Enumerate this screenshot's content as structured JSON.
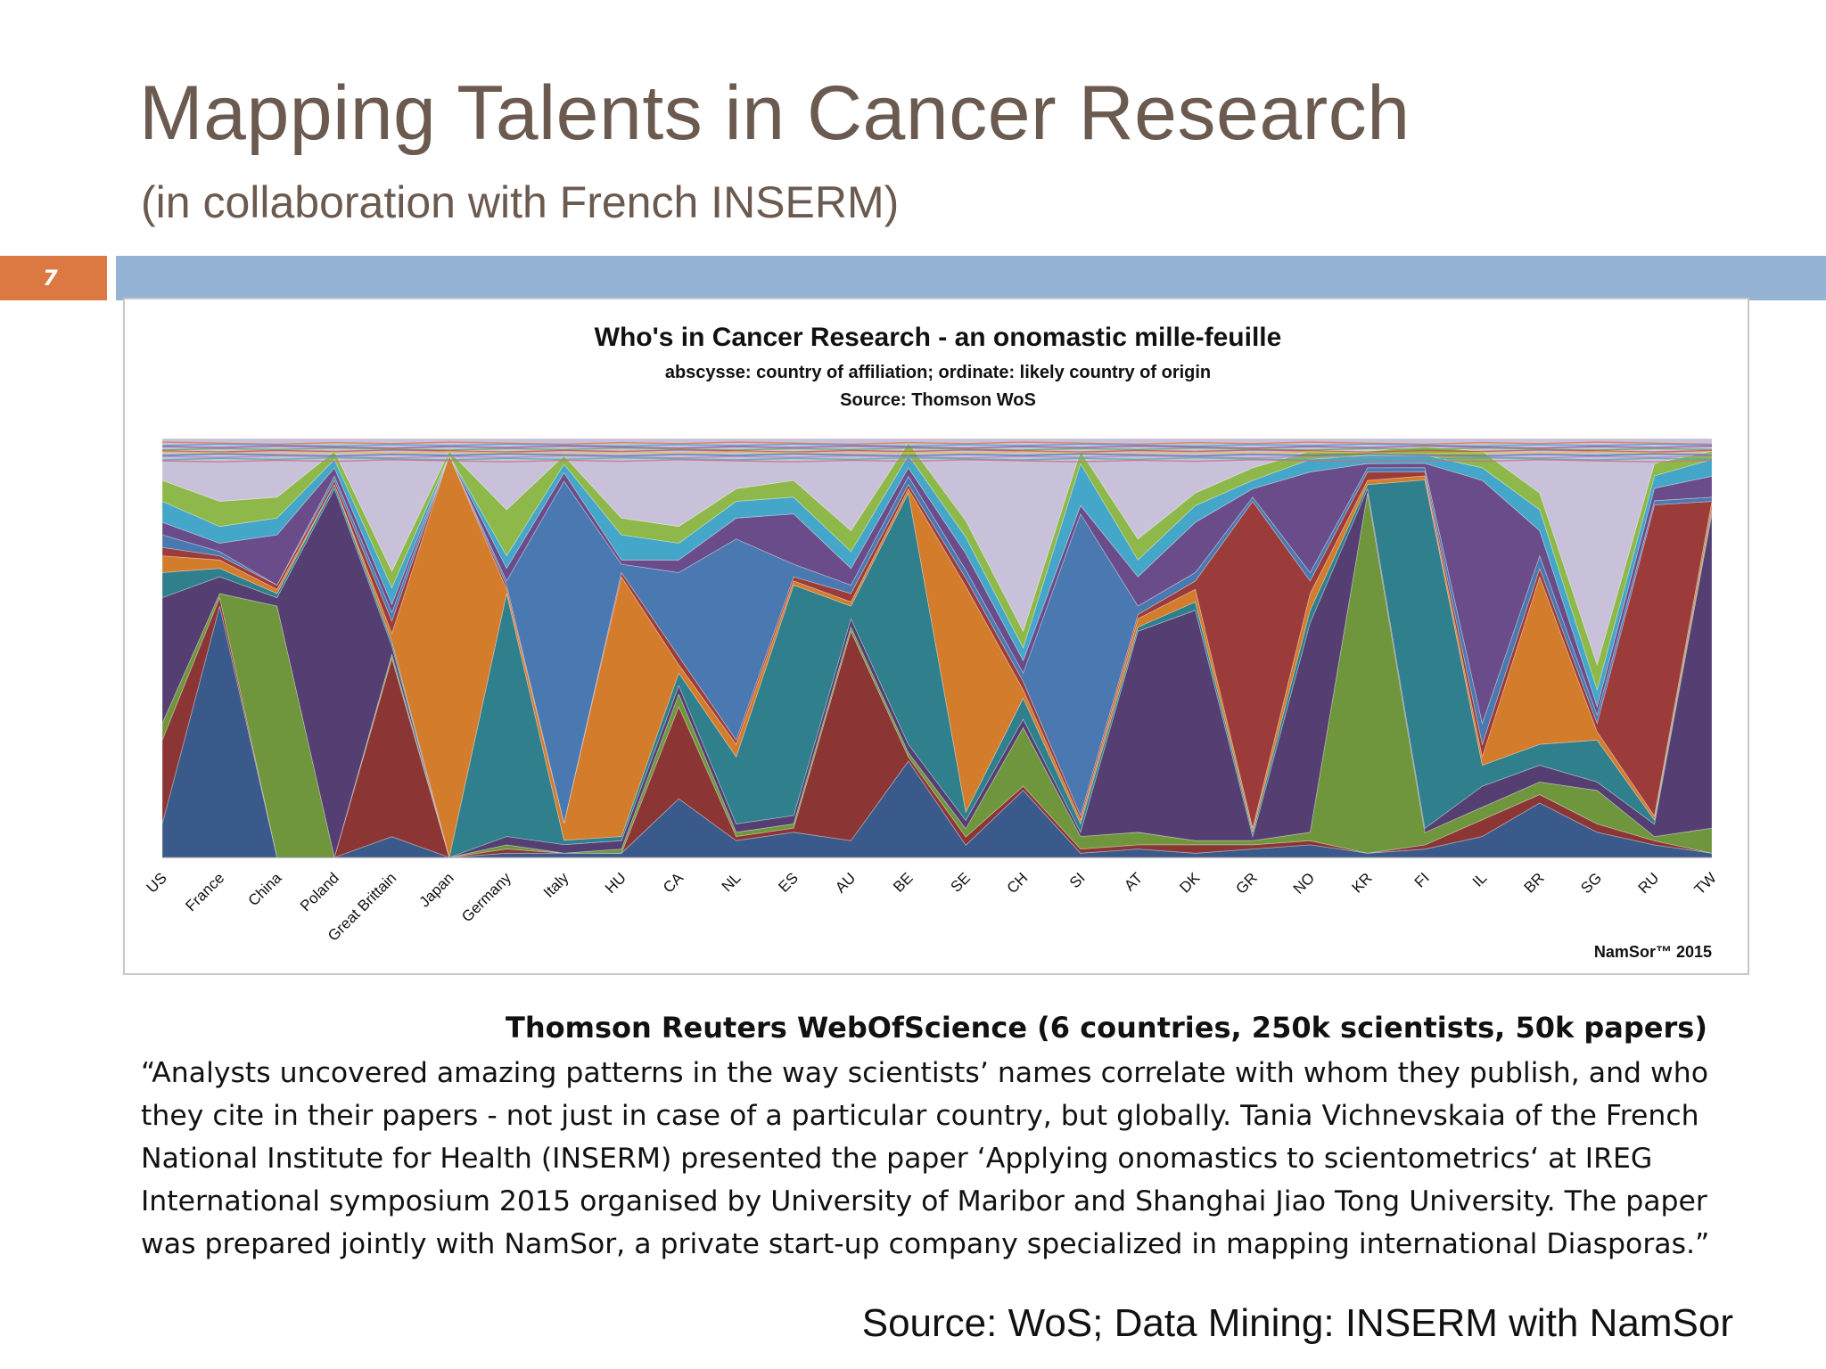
{
  "slide": {
    "title": "Mapping Talents in Cancer Research",
    "subtitle": "(in collaboration with French INSERM)",
    "number": "7"
  },
  "colors": {
    "title": "#6b5a4f",
    "slide_number_bg": "#dc7841",
    "header_bar": "#95b3d5"
  },
  "chart_data": {
    "type": "area",
    "stacked": true,
    "normalized": true,
    "title": "Who's in Cancer Research - an onomastic mille-feuille",
    "subtitle_lines": [
      "abscysse:  country of affiliation; ordinate: likely country of origin",
      "Source: Thomson WoS"
    ],
    "credit": "NamSor™ 2015",
    "categories": [
      "US",
      "France",
      "China",
      "Poland",
      "Great Brittain",
      "Japan",
      "Germany",
      "Italy",
      "HU",
      "CA",
      "NL",
      "ES",
      "AU",
      "BE",
      "SE",
      "CH",
      "SI",
      "AT",
      "DK",
      "GR",
      "NO",
      "KR",
      "FI",
      "IL",
      "BR",
      "SG",
      "RU",
      "TW"
    ],
    "ylim": [
      0,
      1
    ],
    "legend": "none",
    "grid": false,
    "series": [
      {
        "color": "#3a5a8c",
        "values": [
          0.08,
          0.6,
          0.0,
          0.0,
          0.05,
          0.0,
          0.01,
          0.01,
          0.01,
          0.14,
          0.04,
          0.06,
          0.04,
          0.23,
          0.03,
          0.16,
          0.01,
          0.02,
          0.01,
          0.02,
          0.03,
          0.01,
          0.02,
          0.05,
          0.13,
          0.06,
          0.03,
          0.01
        ]
      },
      {
        "color": "#8c3535",
        "values": [
          0.2,
          0.02,
          0.0,
          0.0,
          0.43,
          0.0,
          0.01,
          0.0,
          0.0,
          0.22,
          0.01,
          0.01,
          0.5,
          0.01,
          0.02,
          0.01,
          0.01,
          0.01,
          0.02,
          0.01,
          0.01,
          0.0,
          0.01,
          0.04,
          0.02,
          0.02,
          0.01,
          0.0
        ]
      },
      {
        "color": "#6f963c",
        "values": [
          0.04,
          0.01,
          0.6,
          0.0,
          0.01,
          0.0,
          0.01,
          0.0,
          0.01,
          0.03,
          0.01,
          0.01,
          0.01,
          0.01,
          0.02,
          0.14,
          0.03,
          0.03,
          0.01,
          0.01,
          0.02,
          0.86,
          0.03,
          0.03,
          0.03,
          0.08,
          0.01,
          0.06
        ]
      },
      {
        "color": "#553f72",
        "values": [
          0.3,
          0.04,
          0.02,
          0.88,
          0.02,
          0.0,
          0.02,
          0.02,
          0.02,
          0.02,
          0.02,
          0.02,
          0.02,
          0.02,
          0.02,
          0.02,
          0.01,
          0.48,
          0.55,
          0.01,
          0.5,
          0.01,
          0.01,
          0.05,
          0.04,
          0.02,
          0.03,
          0.75
        ]
      },
      {
        "color": "#2f7f8c",
        "values": [
          0.06,
          0.02,
          0.01,
          0.01,
          0.01,
          0.0,
          0.58,
          0.01,
          0.01,
          0.03,
          0.16,
          0.55,
          0.03,
          0.6,
          0.02,
          0.05,
          0.02,
          0.01,
          0.02,
          0.01,
          0.03,
          0.01,
          0.84,
          0.05,
          0.05,
          0.1,
          0.01,
          0.01
        ]
      },
      {
        "color": "#d37c2c",
        "values": [
          0.04,
          0.02,
          0.01,
          0.0,
          0.02,
          0.96,
          0.01,
          0.04,
          0.62,
          0.02,
          0.03,
          0.01,
          0.01,
          0.01,
          0.55,
          0.02,
          0.01,
          0.02,
          0.03,
          0.01,
          0.04,
          0.01,
          0.01,
          0.02,
          0.4,
          0.02,
          0.01,
          0.02
        ]
      },
      {
        "color": "#9c3c3a",
        "values": [
          0.02,
          0.01,
          0.01,
          0.01,
          0.03,
          0.0,
          0.01,
          0.0,
          0.01,
          0.02,
          0.01,
          0.01,
          0.02,
          0.01,
          0.02,
          0.02,
          0.01,
          0.01,
          0.02,
          0.78,
          0.03,
          0.02,
          0.01,
          0.03,
          0.02,
          0.02,
          0.75,
          0.0
        ]
      },
      {
        "color": "#4a78b0",
        "values": [
          0.03,
          0.01,
          0.0,
          0.01,
          0.02,
          0.0,
          0.01,
          0.8,
          0.02,
          0.2,
          0.48,
          0.03,
          0.02,
          0.02,
          0.02,
          0.02,
          0.72,
          0.02,
          0.02,
          0.01,
          0.02,
          0.01,
          0.01,
          0.05,
          0.03,
          0.02,
          0.01,
          0.01
        ]
      },
      {
        "color": "#6a4c8a",
        "values": [
          0.03,
          0.02,
          0.12,
          0.02,
          0.02,
          0.0,
          0.03,
          0.02,
          0.01,
          0.03,
          0.05,
          0.12,
          0.04,
          0.02,
          0.04,
          0.03,
          0.02,
          0.07,
          0.12,
          0.02,
          0.24,
          0.01,
          0.01,
          0.58,
          0.06,
          0.02,
          0.03,
          0.05
        ]
      },
      {
        "color": "#44a6c8",
        "values": [
          0.05,
          0.04,
          0.04,
          0.02,
          0.04,
          0.0,
          0.03,
          0.02,
          0.06,
          0.04,
          0.04,
          0.04,
          0.04,
          0.03,
          0.04,
          0.03,
          0.1,
          0.04,
          0.04,
          0.02,
          0.03,
          0.02,
          0.02,
          0.03,
          0.05,
          0.04,
          0.03,
          0.04
        ]
      },
      {
        "color": "#8fb84a",
        "values": [
          0.05,
          0.06,
          0.05,
          0.02,
          0.04,
          0.01,
          0.11,
          0.02,
          0.04,
          0.04,
          0.03,
          0.04,
          0.05,
          0.03,
          0.04,
          0.04,
          0.03,
          0.05,
          0.03,
          0.03,
          0.02,
          0.01,
          0.02,
          0.04,
          0.04,
          0.06,
          0.03,
          0.02
        ]
      },
      {
        "color": "#c8c1d9",
        "values": [
          0.1,
          0.15,
          0.14,
          0.03,
          0.32,
          0.03,
          0.17,
          0.04,
          0.19,
          0.21,
          0.12,
          0.1,
          0.22,
          0.01,
          0.2,
          0.46,
          0.03,
          0.24,
          0.13,
          0.07,
          0.03,
          0.03,
          0.02,
          0.03,
          0.13,
          0.54,
          0.06,
          0.03
        ]
      }
    ]
  },
  "caption": {
    "heading": "Thomson Reuters WebOfScience (6 countries,  250k scientists,  50k papers)",
    "quote": "“Analysts uncovered amazing patterns in the way scientists’ names correlate with whom they publish, and who they cite in their papers - not just in case of a particular country, but globally. Tania Vichnevskaia of the French National Institute for Health (INSERM) presented the paper ‘Applying onomastics to scientometrics‘ at IREG International symposium 2015 organised by University of Maribor and Shanghai Jiao Tong University. The paper was prepared jointly with NamSor, a private start-up company specialized in mapping international Diasporas.”",
    "source": "Source: WoS; Data Mining: INSERM with NamSor"
  }
}
